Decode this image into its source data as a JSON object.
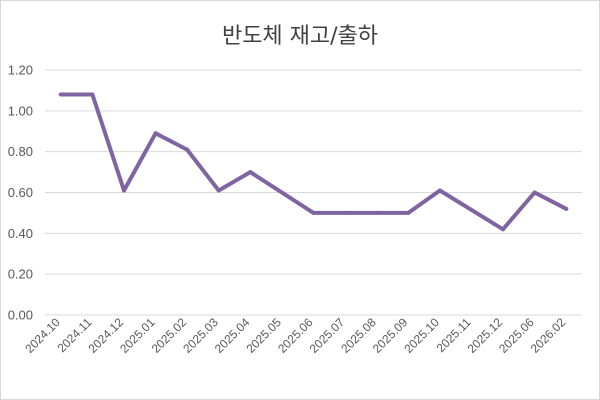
{
  "chart_data": {
    "type": "line",
    "title": "반도체 재고/출하",
    "xlabel": "",
    "ylabel": "",
    "categories": [
      "2024.10",
      "2024.11",
      "2024.12",
      "2025.01",
      "2025.02",
      "2025.03",
      "2025.04",
      "2025.05",
      "2025.06",
      "2025.07",
      "2025.08",
      "2025.09",
      "2025.10",
      "2025.11",
      "2025.12",
      "2025.06",
      "2026.02"
    ],
    "series": [
      {
        "values": [
          1.08,
          1.08,
          0.61,
          0.89,
          0.81,
          0.61,
          0.7,
          null,
          0.5,
          0.5,
          0.5,
          0.5,
          0.61,
          null,
          0.42,
          0.6,
          0.52
        ]
      }
    ],
    "y_ticks": [
      "0.00",
      "0.20",
      "0.40",
      "0.60",
      "0.80",
      "1.00",
      "1.20"
    ],
    "y_tick_values": [
      0,
      0.2,
      0.4,
      0.6,
      0.8,
      1.0,
      1.2
    ],
    "ylim": [
      0,
      1.2
    ],
    "grid": true,
    "line_color": "#8064a2"
  }
}
